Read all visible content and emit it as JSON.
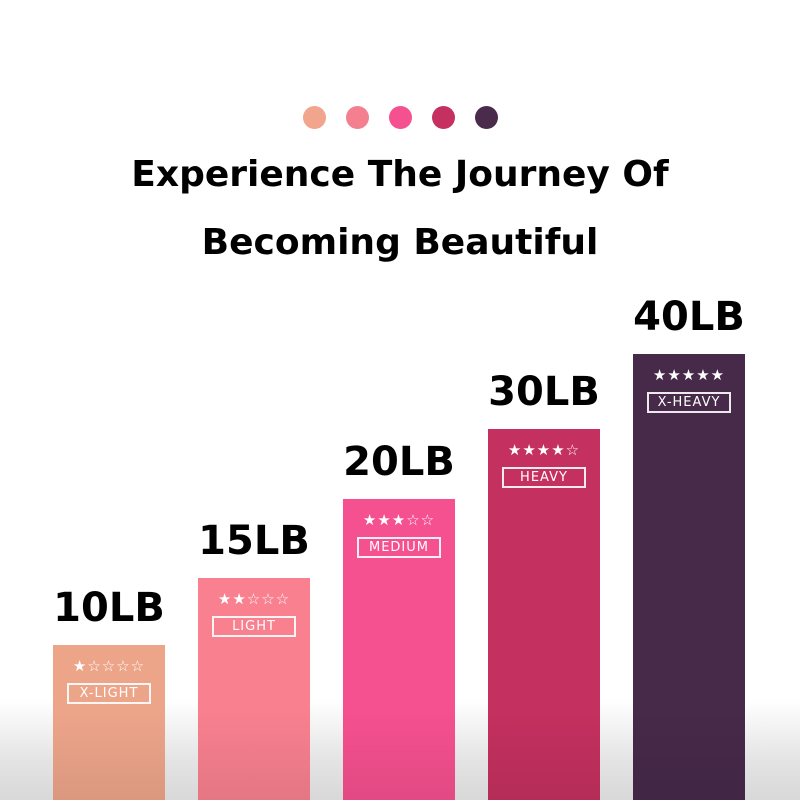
{
  "dot_colors": [
    "#f0a58c",
    "#f4808f",
    "#f5508f",
    "#c53060",
    "#4b2b4b"
  ],
  "title_line1": "Experience The Journey Of",
  "title_line2": "Becoming Beautiful",
  "bands": [
    {
      "weight": "10LB",
      "level": "X-LIGHT",
      "stars": "★☆☆☆☆",
      "rating": 1,
      "color": "#eda58a"
    },
    {
      "weight": "15LB",
      "level": "LIGHT",
      "stars": "★★☆☆☆",
      "rating": 2,
      "color": "#f8808f"
    },
    {
      "weight": "20LB",
      "level": "MEDIUM",
      "stars": "★★★☆☆",
      "rating": 3,
      "color": "#f5508f"
    },
    {
      "weight": "30LB",
      "level": "HEAVY",
      "stars": "★★★★☆",
      "rating": 4,
      "color": "#c4305f"
    },
    {
      "weight": "40LB",
      "level": "X-HEAVY",
      "stars": "★★★★★",
      "rating": 5,
      "color": "#47294a"
    }
  ]
}
